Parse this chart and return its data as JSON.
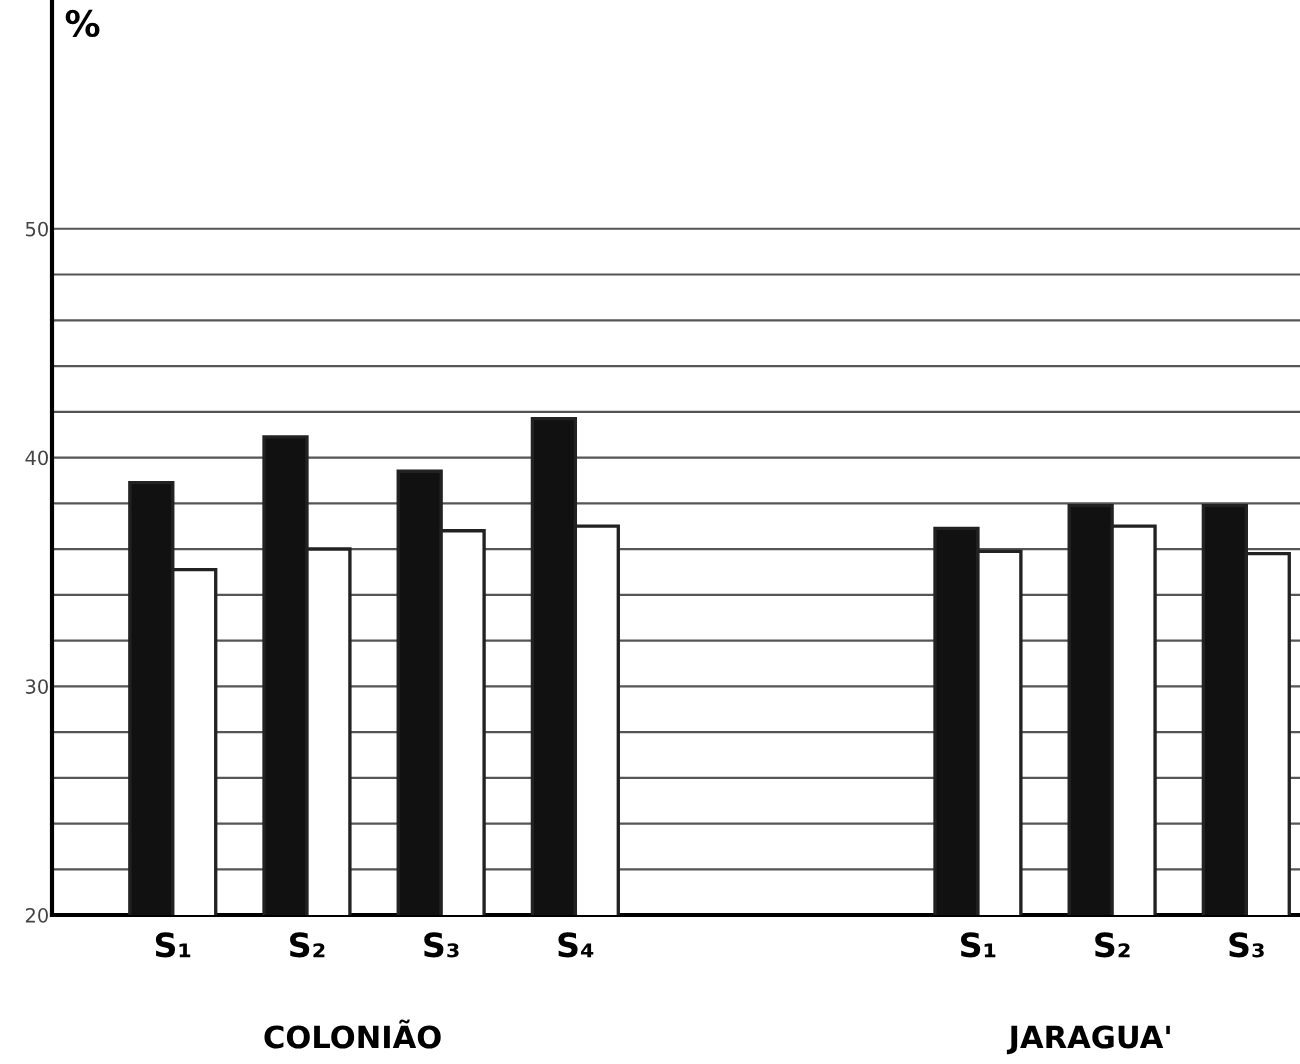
{
  "chart_data": {
    "type": "bar",
    "ylabel": "%",
    "categories": [
      "S₁",
      "S₂",
      "S₃",
      "S₄",
      null,
      null,
      "S₁",
      "S₂",
      "S₃"
    ],
    "series": [
      {
        "color": "#111111",
        "values": [
          38.9,
          40.9,
          39.4,
          41.7,
          null,
          null,
          36.9,
          37.9,
          37.9
        ]
      },
      {
        "color": "#ffffff",
        "values": [
          35.1,
          36.0,
          36.8,
          37.0,
          null,
          null,
          35.9,
          37.0,
          35.8
        ]
      }
    ],
    "ylim": [
      20,
      60
    ],
    "yticks": [
      20,
      {
        "value": 22,
        "label": null
      },
      {
        "value": 24,
        "label": null
      },
      {
        "value": 26,
        "label": null
      },
      {
        "value": 28,
        "label": null
      },
      30,
      {
        "value": 32,
        "label": null
      },
      {
        "value": 34,
        "label": null
      },
      {
        "value": 36,
        "label": null
      },
      {
        "value": 38,
        "label": null
      },
      40,
      {
        "value": 42,
        "label": null
      },
      {
        "value": 44,
        "label": null
      },
      {
        "value": 46,
        "label": null
      },
      {
        "value": 48,
        "label": null
      },
      50
    ],
    "grid": "y",
    "annotations": [
      "COLONIÃO",
      "JARAGUA'"
    ]
  }
}
